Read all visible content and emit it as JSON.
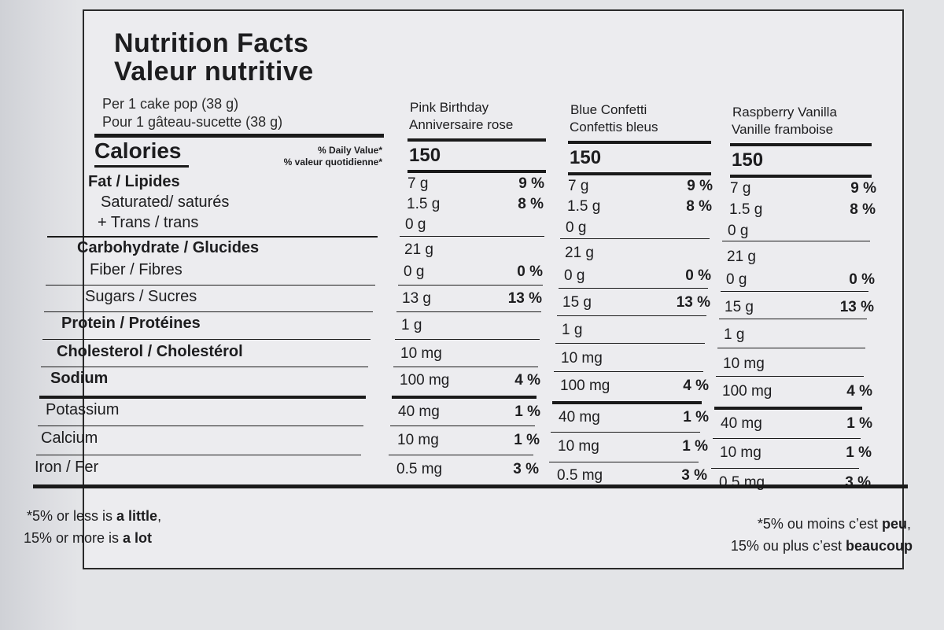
{
  "title": {
    "en": "Nutrition Facts",
    "fr": "Valeur nutritive"
  },
  "serving": {
    "en": "Per 1 cake pop (38 g)",
    "fr": "Pour 1 gâteau-sucette (38 g)"
  },
  "calories_label": "Calories",
  "daily_value": {
    "en": "% Daily Value*",
    "fr": "% valeur quotidienne*"
  },
  "nutrients": [
    {
      "label": "Fat / Lipides",
      "bold": true
    },
    {
      "label": "Saturated/ saturés",
      "bold": false
    },
    {
      "label": "+ Trans / trans",
      "bold": false
    },
    {
      "label": "Carbohydrate / Glucides",
      "bold": true
    },
    {
      "label": "Fiber / Fibres",
      "bold": false
    },
    {
      "label": "Sugars / Sucres",
      "bold": false
    },
    {
      "label": "Protein / Protéines",
      "bold": true
    },
    {
      "label": "Cholesterol / Cholestérol",
      "bold": true
    },
    {
      "label": "Sodium",
      "bold": true
    },
    {
      "label": "Potassium",
      "bold": false
    },
    {
      "label": "Calcium",
      "bold": false
    },
    {
      "label": "Iron / Fer",
      "bold": false
    }
  ],
  "products": [
    {
      "name_en": "Pink Birthday",
      "name_fr": "Anniversaire rose",
      "calories": "150",
      "values": [
        "7 g",
        "1.5 g",
        "0 g",
        "21 g",
        "0 g",
        "13 g",
        "1 g",
        "10 mg",
        "100 mg",
        "40 mg",
        "10 mg",
        "0.5 mg"
      ],
      "pcts": [
        "9 %",
        "8 %",
        "",
        "",
        "0 %",
        "13 %",
        "",
        "",
        "4 %",
        "1 %",
        "1 %",
        "3 %"
      ]
    },
    {
      "name_en": "Blue Confetti",
      "name_fr": "Confettis bleus",
      "calories": "150",
      "values": [
        "7 g",
        "1.5 g",
        "0 g",
        "21 g",
        "0 g",
        "15 g",
        "1 g",
        "10 mg",
        "100 mg",
        "40 mg",
        "10 mg",
        "0.5 mg"
      ],
      "pcts": [
        "9 %",
        "8 %",
        "",
        "",
        "0 %",
        "13 %",
        "",
        "",
        "4 %",
        "1 %",
        "1 %",
        "3 %"
      ]
    },
    {
      "name_en": "Raspberry Vanilla",
      "name_fr": "Vanille framboise",
      "calories": "150",
      "values": [
        "7 g",
        "1.5 g",
        "0 g",
        "21 g",
        "0 g",
        "15 g",
        "1 g",
        "10 mg",
        "100 mg",
        "40 mg",
        "10 mg",
        "0.5 mg"
      ],
      "pcts": [
        "9 %",
        "8 %",
        "",
        "",
        "0 %",
        "13 %",
        "",
        "",
        "4 %",
        "1 %",
        "1 %",
        "3 %"
      ]
    }
  ],
  "footnote": {
    "en_line1_pre": "*5% or less is ",
    "en_line1_bold": "a little",
    "en_line1_post": ",",
    "en_line2_pre": "15% or more is ",
    "en_line2_bold": "a lot",
    "fr_line1_pre": "*5% ou moins c’est ",
    "fr_line1_bold": "peu",
    "fr_line1_post": ",",
    "fr_line2_pre": "15% ou plus c’est ",
    "fr_line2_bold": "beaucoup"
  }
}
